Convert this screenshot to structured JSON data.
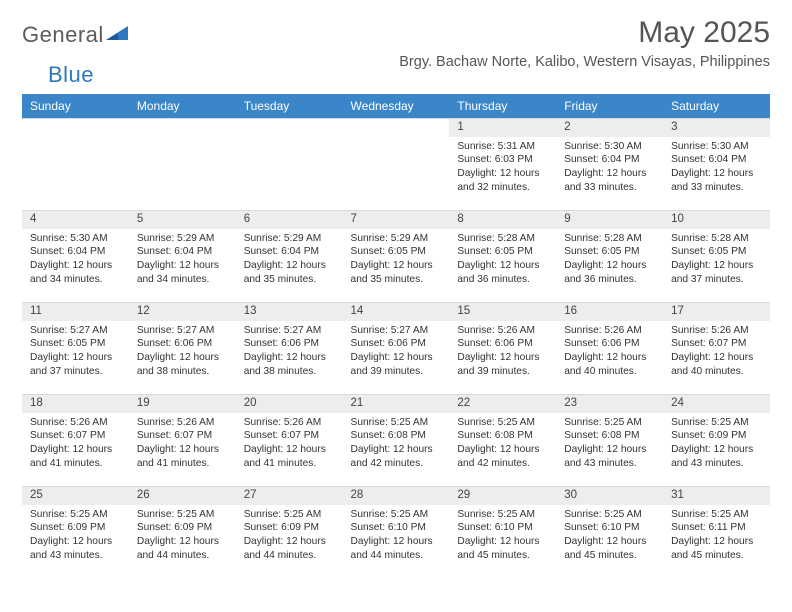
{
  "logo": {
    "word1": "General",
    "word2": "Blue"
  },
  "title": "May 2025",
  "location": "Brgy. Bachaw Norte, Kalibo, Western Visayas, Philippines",
  "colors": {
    "header_bg": "#3a86c8",
    "header_fg": "#ffffff",
    "daynum_bg": "#ecedee",
    "text": "#333333",
    "title_color": "#555555",
    "logo_gray": "#5c5c5c",
    "logo_blue": "#2f78bd"
  },
  "weekdays": [
    "Sunday",
    "Monday",
    "Tuesday",
    "Wednesday",
    "Thursday",
    "Friday",
    "Saturday"
  ],
  "weeks": [
    [
      null,
      null,
      null,
      null,
      {
        "n": "1",
        "sr": "5:31 AM",
        "ss": "6:03 PM",
        "dl": "12 hours and 32 minutes."
      },
      {
        "n": "2",
        "sr": "5:30 AM",
        "ss": "6:04 PM",
        "dl": "12 hours and 33 minutes."
      },
      {
        "n": "3",
        "sr": "5:30 AM",
        "ss": "6:04 PM",
        "dl": "12 hours and 33 minutes."
      }
    ],
    [
      {
        "n": "4",
        "sr": "5:30 AM",
        "ss": "6:04 PM",
        "dl": "12 hours and 34 minutes."
      },
      {
        "n": "5",
        "sr": "5:29 AM",
        "ss": "6:04 PM",
        "dl": "12 hours and 34 minutes."
      },
      {
        "n": "6",
        "sr": "5:29 AM",
        "ss": "6:04 PM",
        "dl": "12 hours and 35 minutes."
      },
      {
        "n": "7",
        "sr": "5:29 AM",
        "ss": "6:05 PM",
        "dl": "12 hours and 35 minutes."
      },
      {
        "n": "8",
        "sr": "5:28 AM",
        "ss": "6:05 PM",
        "dl": "12 hours and 36 minutes."
      },
      {
        "n": "9",
        "sr": "5:28 AM",
        "ss": "6:05 PM",
        "dl": "12 hours and 36 minutes."
      },
      {
        "n": "10",
        "sr": "5:28 AM",
        "ss": "6:05 PM",
        "dl": "12 hours and 37 minutes."
      }
    ],
    [
      {
        "n": "11",
        "sr": "5:27 AM",
        "ss": "6:05 PM",
        "dl": "12 hours and 37 minutes."
      },
      {
        "n": "12",
        "sr": "5:27 AM",
        "ss": "6:06 PM",
        "dl": "12 hours and 38 minutes."
      },
      {
        "n": "13",
        "sr": "5:27 AM",
        "ss": "6:06 PM",
        "dl": "12 hours and 38 minutes."
      },
      {
        "n": "14",
        "sr": "5:27 AM",
        "ss": "6:06 PM",
        "dl": "12 hours and 39 minutes."
      },
      {
        "n": "15",
        "sr": "5:26 AM",
        "ss": "6:06 PM",
        "dl": "12 hours and 39 minutes."
      },
      {
        "n": "16",
        "sr": "5:26 AM",
        "ss": "6:06 PM",
        "dl": "12 hours and 40 minutes."
      },
      {
        "n": "17",
        "sr": "5:26 AM",
        "ss": "6:07 PM",
        "dl": "12 hours and 40 minutes."
      }
    ],
    [
      {
        "n": "18",
        "sr": "5:26 AM",
        "ss": "6:07 PM",
        "dl": "12 hours and 41 minutes."
      },
      {
        "n": "19",
        "sr": "5:26 AM",
        "ss": "6:07 PM",
        "dl": "12 hours and 41 minutes."
      },
      {
        "n": "20",
        "sr": "5:26 AM",
        "ss": "6:07 PM",
        "dl": "12 hours and 41 minutes."
      },
      {
        "n": "21",
        "sr": "5:25 AM",
        "ss": "6:08 PM",
        "dl": "12 hours and 42 minutes."
      },
      {
        "n": "22",
        "sr": "5:25 AM",
        "ss": "6:08 PM",
        "dl": "12 hours and 42 minutes."
      },
      {
        "n": "23",
        "sr": "5:25 AM",
        "ss": "6:08 PM",
        "dl": "12 hours and 43 minutes."
      },
      {
        "n": "24",
        "sr": "5:25 AM",
        "ss": "6:09 PM",
        "dl": "12 hours and 43 minutes."
      }
    ],
    [
      {
        "n": "25",
        "sr": "5:25 AM",
        "ss": "6:09 PM",
        "dl": "12 hours and 43 minutes."
      },
      {
        "n": "26",
        "sr": "5:25 AM",
        "ss": "6:09 PM",
        "dl": "12 hours and 44 minutes."
      },
      {
        "n": "27",
        "sr": "5:25 AM",
        "ss": "6:09 PM",
        "dl": "12 hours and 44 minutes."
      },
      {
        "n": "28",
        "sr": "5:25 AM",
        "ss": "6:10 PM",
        "dl": "12 hours and 44 minutes."
      },
      {
        "n": "29",
        "sr": "5:25 AM",
        "ss": "6:10 PM",
        "dl": "12 hours and 45 minutes."
      },
      {
        "n": "30",
        "sr": "5:25 AM",
        "ss": "6:10 PM",
        "dl": "12 hours and 45 minutes."
      },
      {
        "n": "31",
        "sr": "5:25 AM",
        "ss": "6:11 PM",
        "dl": "12 hours and 45 minutes."
      }
    ]
  ],
  "labels": {
    "sunrise": "Sunrise:",
    "sunset": "Sunset:",
    "daylight": "Daylight:"
  }
}
